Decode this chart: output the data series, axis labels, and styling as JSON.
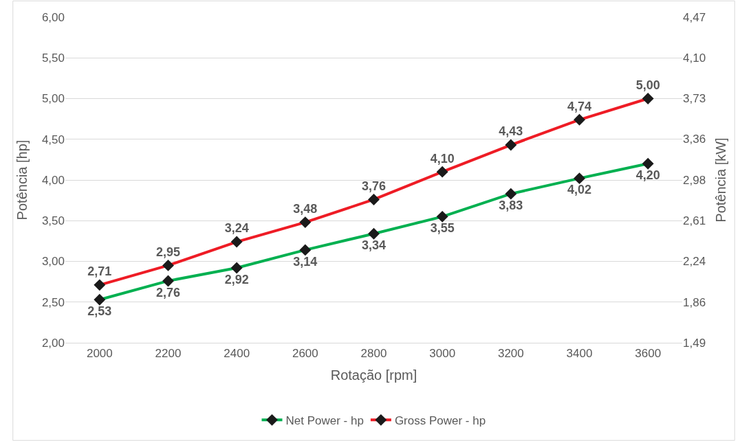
{
  "chart_data": {
    "type": "line",
    "xlabel": "Rotação [rpm]",
    "ylabel": "Potência [hp]",
    "y2label": "Potência [kW]",
    "categories": [
      "2000",
      "2200",
      "2400",
      "2600",
      "2800",
      "3000",
      "3200",
      "3400",
      "3600"
    ],
    "series": [
      {
        "name": "Net Power - hp",
        "color": "#00b050",
        "values": [
          2.53,
          2.76,
          2.92,
          3.14,
          3.34,
          3.55,
          3.83,
          4.02,
          4.2
        ],
        "value_labels": [
          "2,53",
          "2,76",
          "2,92",
          "3,14",
          "3,34",
          "3,55",
          "3,83",
          "4,02",
          "4,20"
        ]
      },
      {
        "name": "Gross Power - hp",
        "color": "#ee1c25",
        "values": [
          2.71,
          2.95,
          3.24,
          3.48,
          3.76,
          4.1,
          4.43,
          4.74,
          5.0
        ],
        "value_labels": [
          "2,71",
          "2,95",
          "3,24",
          "3,48",
          "3,76",
          "4,10",
          "4,43",
          "4,74",
          "5,00"
        ]
      }
    ],
    "ylim": [
      2.0,
      6.0
    ],
    "yticks": [
      {
        "value": 2.0,
        "label": "2,00"
      },
      {
        "value": 2.5,
        "label": "2,50"
      },
      {
        "value": 3.0,
        "label": "3,00"
      },
      {
        "value": 3.5,
        "label": "3,50"
      },
      {
        "value": 4.0,
        "label": "4,00"
      },
      {
        "value": 4.5,
        "label": "4,50"
      },
      {
        "value": 5.0,
        "label": "5,00"
      },
      {
        "value": 5.5,
        "label": "5,50"
      },
      {
        "value": 6.0,
        "label": "6,00"
      }
    ],
    "y2lim": [
      1.49,
      4.47
    ],
    "y2ticks": [
      {
        "value": 1.49,
        "label": "1,49"
      },
      {
        "value": 1.86,
        "label": "1,86"
      },
      {
        "value": 2.24,
        "label": "2,24"
      },
      {
        "value": 2.61,
        "label": "2,61"
      },
      {
        "value": 2.98,
        "label": "2,98"
      },
      {
        "value": 3.36,
        "label": "3,36"
      },
      {
        "value": 3.73,
        "label": "3,73"
      },
      {
        "value": 4.1,
        "label": "4,10"
      },
      {
        "value": 4.47,
        "label": "4,47"
      }
    ],
    "grid": "y",
    "legend": "bottom",
    "marker": "diamond",
    "line_style": "solid"
  }
}
